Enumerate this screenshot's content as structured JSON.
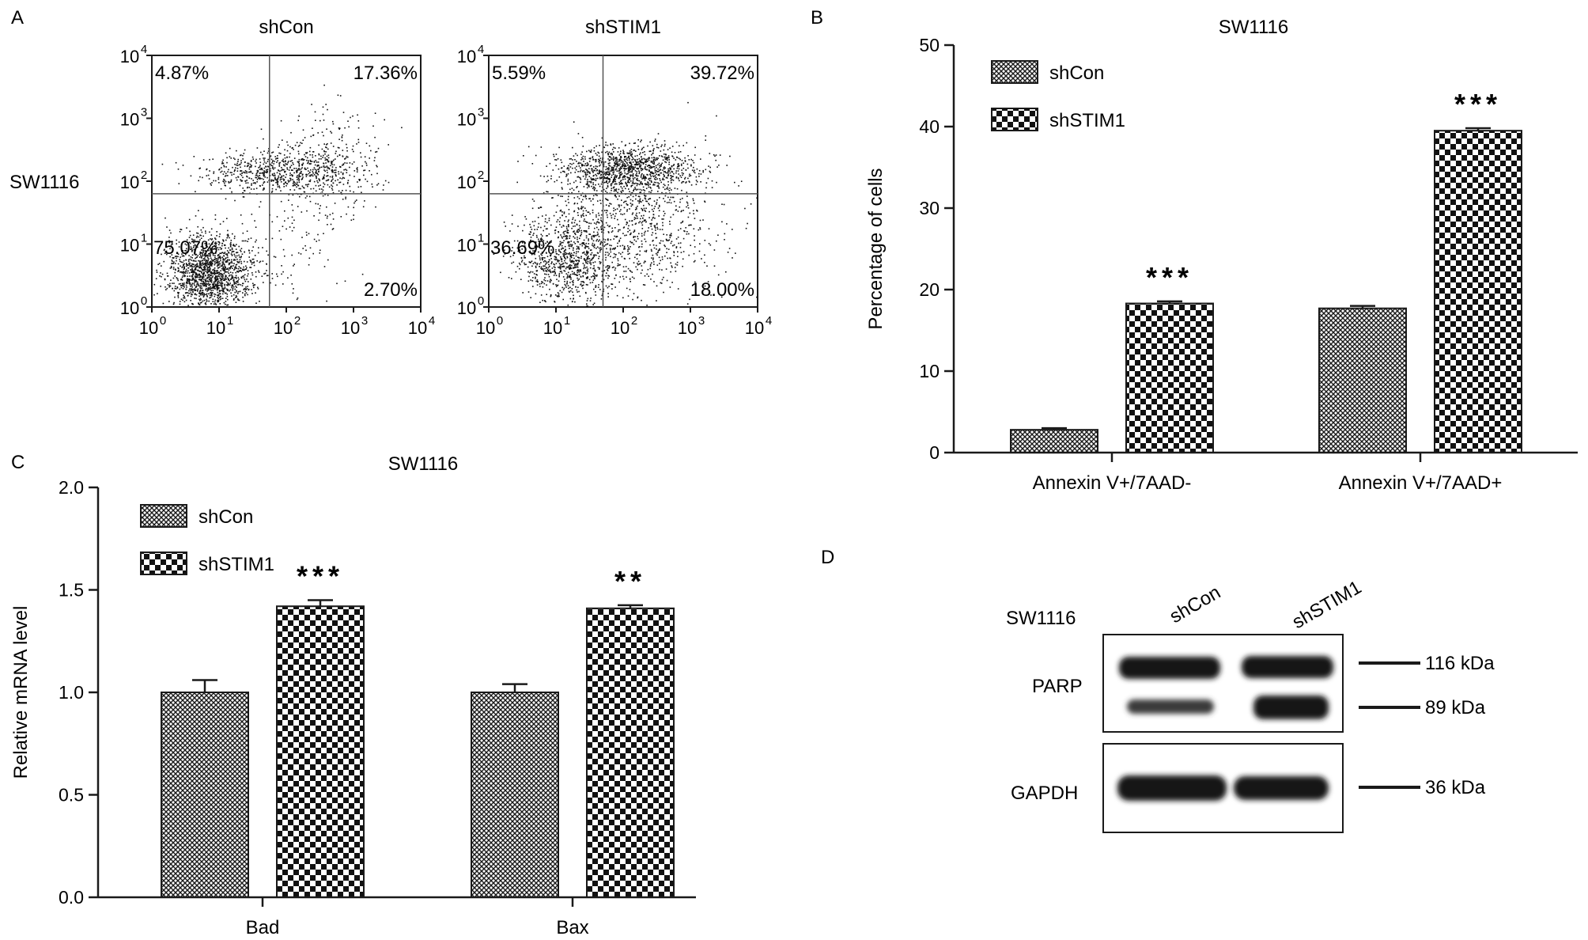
{
  "panels": {
    "A": "A",
    "B": "B",
    "C": "C",
    "D": "D"
  },
  "flow": {
    "row_label": "SW1116",
    "x_ticks": [
      "10",
      "10",
      "10",
      "10",
      "10"
    ],
    "x_tick_exponents": [
      "0",
      "1",
      "2",
      "3",
      "4"
    ],
    "y_ticks": [
      "10",
      "10",
      "10",
      "10",
      "10"
    ],
    "y_tick_exponents": [
      "0",
      "1",
      "2",
      "3",
      "4"
    ],
    "plots": [
      {
        "title": "shCon",
        "quadrants": {
          "ul": "4.87%",
          "ur": "17.36%",
          "ll": "75.07%",
          "lr": "2.70%"
        },
        "gate": {
          "x": 1.75,
          "y": 1.8
        },
        "clusters": [
          {
            "cx": 0.85,
            "cy": 0.55,
            "sx": 0.32,
            "sy": 0.3,
            "n": 1500
          },
          {
            "cx": 1.9,
            "cy": 2.15,
            "sx": 0.55,
            "sy": 0.16,
            "n": 700
          },
          {
            "cx": 2.65,
            "cy": 2.25,
            "sx": 0.35,
            "sy": 0.5,
            "n": 260
          },
          {
            "cx": 1.8,
            "cy": 1.0,
            "sx": 0.5,
            "sy": 0.5,
            "n": 120
          }
        ]
      },
      {
        "title": "shSTIM1",
        "quadrants": {
          "ul": "5.59%",
          "ur": "39.72%",
          "ll": "36.69%",
          "lr": "18.00%"
        },
        "gate": {
          "x": 1.7,
          "y": 1.8
        },
        "clusters": [
          {
            "cx": 1.15,
            "cy": 0.75,
            "sx": 0.38,
            "sy": 0.35,
            "n": 900
          },
          {
            "cx": 2.1,
            "cy": 2.2,
            "sx": 0.5,
            "sy": 0.18,
            "n": 1000
          },
          {
            "cx": 2.3,
            "cy": 1.3,
            "sx": 0.55,
            "sy": 0.6,
            "n": 700
          },
          {
            "cx": 1.7,
            "cy": 1.6,
            "sx": 0.55,
            "sy": 0.4,
            "n": 300
          }
        ]
      }
    ]
  },
  "western": {
    "cell_label": "SW1116",
    "lanes": [
      "shCon",
      "shSTIM1"
    ],
    "proteins": [
      "PARP",
      "GAPDH"
    ],
    "markers": [
      "116 kDa",
      "89 kDa",
      "36 kDa"
    ]
  },
  "chart_data": [
    {
      "type": "bar",
      "title": "SW1116",
      "ylabel": "Percentage of cells",
      "xlabel": "",
      "categories": [
        "Annexin V+/7AAD-",
        "Annexin V+/7AAD+"
      ],
      "ylim": [
        0,
        50
      ],
      "yticks": [
        0,
        10,
        20,
        30,
        40,
        50
      ],
      "legend": "top-left",
      "series": [
        {
          "name": "shCon",
          "values": [
            2.8,
            17.7
          ],
          "errors": [
            0.2,
            0.3
          ],
          "sig": [
            "",
            ""
          ]
        },
        {
          "name": "shSTIM1",
          "values": [
            18.3,
            39.5
          ],
          "errors": [
            0.25,
            0.3
          ],
          "sig": [
            "***",
            "***"
          ]
        }
      ]
    },
    {
      "type": "bar",
      "title": "SW1116",
      "ylabel": "Relative mRNA level",
      "xlabel": "",
      "categories": [
        "Bad",
        "Bax"
      ],
      "ylim": [
        0,
        2.0
      ],
      "yticks": [
        "0.0",
        "0.5",
        "1.0",
        "1.5",
        "2.0"
      ],
      "legend": "top-left",
      "series": [
        {
          "name": "shCon",
          "values": [
            1.0,
            1.0
          ],
          "errors": [
            0.06,
            0.04
          ],
          "sig": [
            "",
            ""
          ]
        },
        {
          "name": "shSTIM1",
          "values": [
            1.42,
            1.41
          ],
          "errors": [
            0.03,
            0.015
          ],
          "sig": [
            "***",
            "**"
          ]
        }
      ]
    }
  ]
}
